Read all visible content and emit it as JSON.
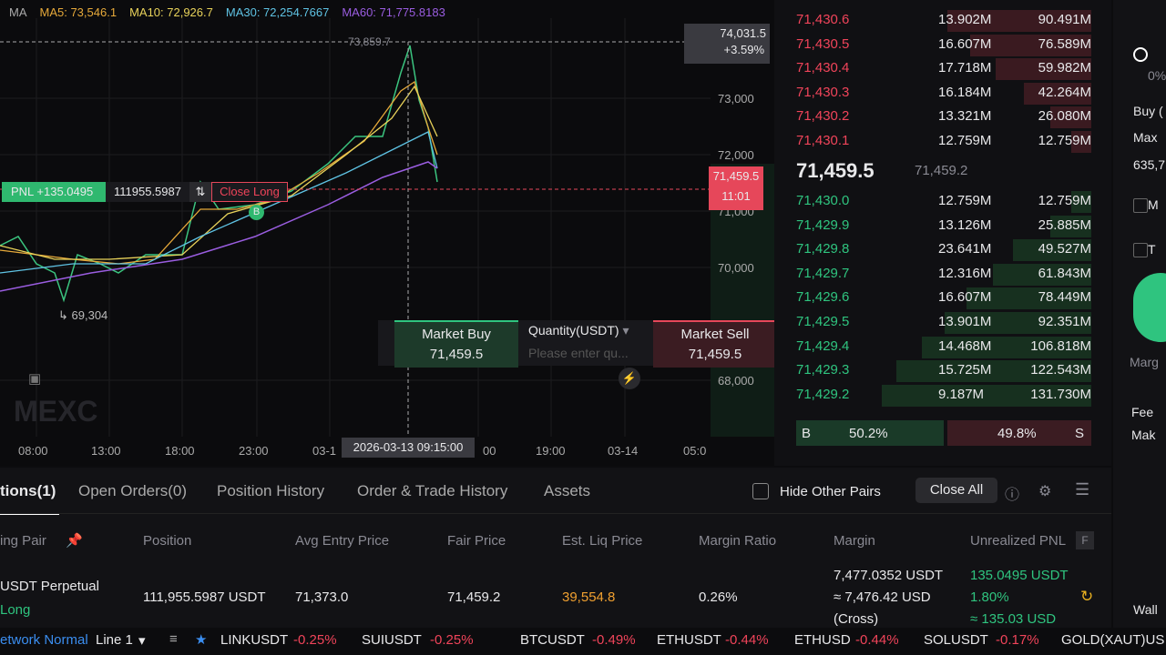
{
  "chart": {
    "ma_legend": [
      "MA",
      "MA5: 73,546.1",
      "MA10: 72,926.7",
      "MA30: 72,254.7667",
      "MA60: 71,775.8183"
    ],
    "price_ticks": [
      "73,000",
      "72,000",
      "71,000",
      "70,000",
      "68,000"
    ],
    "time_labels": [
      "08:00",
      "13:00",
      "18:00",
      "23:00",
      "03-1",
      "00",
      "19:00",
      "03-14",
      "05:0"
    ],
    "crosshair_price": "73,859.7",
    "crosshair_time": "2026-03-13 09:15:00",
    "high_label": "74,031.5",
    "high_change": "+3.59%",
    "current_price": "71,459.5",
    "countdown": "11:01",
    "low_label": "69,304",
    "pnl": "PNL +135.0495",
    "position_size": "111955.5987",
    "close_button": "Close Long",
    "buy_marker": "B",
    "watermark": "MEXC",
    "quick_trade": {
      "buy_label": "Market Buy",
      "buy_price": "71,459.5",
      "quantity_label": "Quantity(USDT)",
      "quantity_placeholder": "Please enter qu...",
      "sell_label": "Market Sell",
      "sell_price": "71,459.5"
    }
  },
  "order_book": {
    "asks": [
      [
        "71,430.6",
        "13.902M",
        "90.491M"
      ],
      [
        "71,430.5",
        "16.607M",
        "76.589M"
      ],
      [
        "71,430.4",
        "17.718M",
        "59.982M"
      ],
      [
        "71,430.3",
        "16.184M",
        "42.264M"
      ],
      [
        "71,430.2",
        "13.321M",
        "26.080M"
      ],
      [
        "71,430.1",
        "12.759M",
        "12.759M"
      ]
    ],
    "last_price": "71,459.5",
    "mark_price": "71,459.2",
    "bids": [
      [
        "71,430.0",
        "12.759M",
        "12.759M"
      ],
      [
        "71,429.9",
        "13.126M",
        "25.885M"
      ],
      [
        "71,429.8",
        "23.641M",
        "49.527M"
      ],
      [
        "71,429.7",
        "12.316M",
        "61.843M"
      ],
      [
        "71,429.6",
        "16.607M",
        "78.449M"
      ],
      [
        "71,429.5",
        "13.901M",
        "92.351M"
      ],
      [
        "71,429.4",
        "14.468M",
        "106.818M"
      ],
      [
        "71,429.3",
        "15.725M",
        "122.543M"
      ],
      [
        "71,429.2",
        "9.187M",
        "131.730M"
      ]
    ],
    "buy_ratio_label": "B",
    "buy_ratio": "50.2%",
    "sell_ratio": "49.8%",
    "sell_ratio_label": "S"
  },
  "side_panel": [
    "0%",
    "Buy (",
    "Max",
    "635,7",
    "M",
    "T",
    "Marg",
    "Fee",
    "Mak",
    "Wall"
  ],
  "tabs": [
    "tions(1)",
    "Open Orders(0)",
    "Position History",
    "Order & Trade History",
    "Assets"
  ],
  "hide_other_pairs": "Hide Other Pairs",
  "close_all": "Close All",
  "table": {
    "headers": [
      "ing Pair",
      "Position",
      "Avg Entry Price",
      "Fair Price",
      "Est. Liq Price",
      "Margin Ratio",
      "Margin",
      "Unrealized PNL"
    ],
    "fair_badge": "F",
    "row": {
      "pair": "USDT  Perpetual",
      "side": "Long",
      "position": "111,955.5987 USDT",
      "avg_entry": "71,373.0",
      "fair_price": "71,459.2",
      "liq_price": "39,554.8",
      "margin_ratio": "0.26%",
      "margin": [
        "7,477.0352 USDT",
        "≈ 7,476.42 USD",
        "(Cross)"
      ],
      "pnl": [
        "135.0495 USDT",
        "1.80%",
        "≈ 135.03 USD"
      ]
    }
  },
  "ticker": {
    "network": "etwork Normal",
    "line": "Line 1",
    "items": [
      {
        "name": "LINKUSDT",
        "change": "-0.25%"
      },
      {
        "name": "SUIUSDT",
        "change": "-0.25%"
      },
      {
        "name": "BTCUSDT",
        "change": "-0.49%"
      },
      {
        "name": "ETHUSDT",
        "change": "-0.44%"
      },
      {
        "name": "ETHUSD",
        "change": "-0.44%"
      },
      {
        "name": "SOLUSDT",
        "change": "-0.17%"
      },
      {
        "name": "GOLD(XAUT)US",
        "change": ""
      }
    ]
  }
}
